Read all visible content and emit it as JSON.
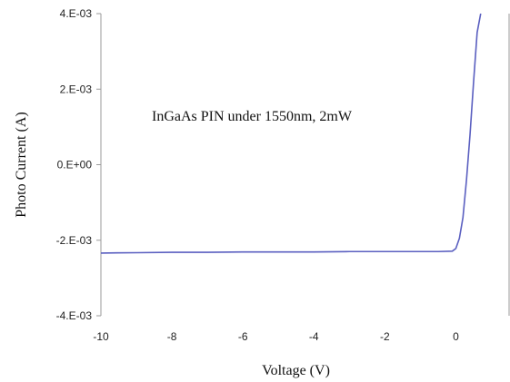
{
  "chart_data": {
    "type": "line",
    "title": "",
    "xlabel": "Voltage (V)",
    "ylabel": "Photo Current (A)",
    "xlim": [
      -10,
      1.5
    ],
    "ylim": [
      -0.004,
      0.004
    ],
    "x_ticks": [
      -10,
      -8,
      -6,
      -4,
      -2,
      0
    ],
    "x_tick_labels": [
      "-10",
      "-8",
      "-6",
      "-4",
      "-2",
      "0"
    ],
    "y_ticks": [
      0.004,
      0.002,
      0.0,
      -0.002,
      -0.004
    ],
    "y_tick_labels": [
      "4.E-03",
      "2.E-03",
      "0.E+00",
      "-2.E-03",
      "-4.E-03"
    ],
    "grid": false,
    "annotation": "InGaAs PIN under 1550nm, 2mW",
    "line_color": "#5a5fc0",
    "series": [
      {
        "x": [
          -10,
          -9,
          -8,
          -7,
          -6,
          -5,
          -4,
          -3,
          -2,
          -1,
          -0.5,
          -0.1,
          0.0,
          0.1,
          0.2,
          0.3,
          0.4,
          0.5,
          0.6,
          0.7
        ],
        "y": [
          -0.00234,
          -0.00233,
          -0.00232,
          -0.00232,
          -0.00231,
          -0.00231,
          -0.00231,
          -0.0023,
          -0.0023,
          -0.0023,
          -0.0023,
          -0.00229,
          -0.00222,
          -0.00195,
          -0.0014,
          -0.0004,
          0.0008,
          0.0022,
          0.0035,
          0.0042
        ]
      }
    ]
  }
}
